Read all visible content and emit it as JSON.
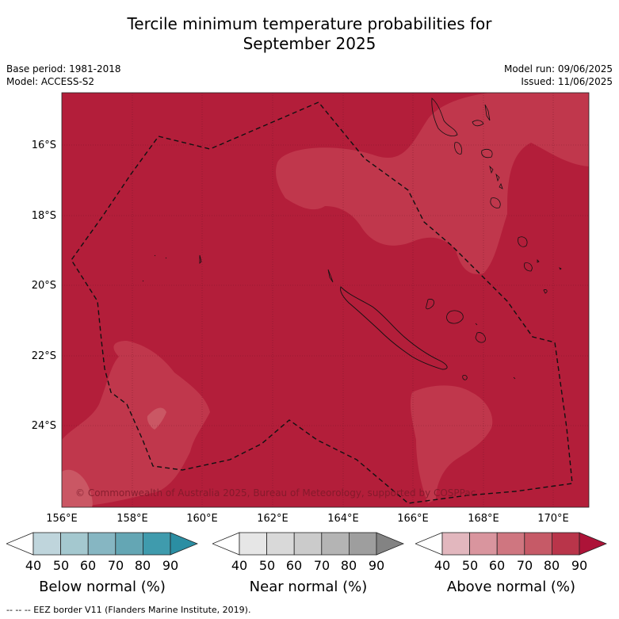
{
  "title_line1": "Tercile minimum temperature probabilities for",
  "title_line2": "September 2025",
  "base_period": "Base period: 1981-2018",
  "model": "Model: ACCESS-S2",
  "model_run": "Model run: 09/06/2025",
  "issued": "Issued: 11/06/2025",
  "copyright": "© Commonwealth of Australia 2025, Bureau of Meteorology, supported by COSPPac",
  "lat_labels": [
    "16°S",
    "18°S",
    "20°S",
    "22°S",
    "24°S"
  ],
  "lon_labels": [
    "156°E",
    "158°E",
    "160°E",
    "162°E",
    "164°E",
    "166°E",
    "168°E",
    "170°E"
  ],
  "colorbars": [
    {
      "label": "Below normal (%)",
      "ticks": [
        "40",
        "50",
        "60",
        "70",
        "80",
        "90"
      ],
      "colors": [
        "#ffffff",
        "#bfd5dc",
        "#a4c8cf",
        "#86b6c2",
        "#64a6b4",
        "#3f9bad",
        "#2b8ea3"
      ]
    },
    {
      "label": "Near normal (%)",
      "ticks": [
        "40",
        "50",
        "60",
        "70",
        "80",
        "90"
      ],
      "colors": [
        "#ffffff",
        "#e6e6e6",
        "#d9d9d9",
        "#cbcbcb",
        "#b4b4b4",
        "#9e9e9e",
        "#838383"
      ]
    },
    {
      "label": "Above normal (%)",
      "ticks": [
        "40",
        "50",
        "60",
        "70",
        "80",
        "90"
      ],
      "colors": [
        "#ffffff",
        "#e2b7be",
        "#d9959e",
        "#cf7680",
        "#c65a67",
        "#b9354a",
        "#ad1338"
      ]
    }
  ],
  "map_colors": {
    "above_80_90": "#b31e3a",
    "above_70_80": "#c0374c",
    "above_60_70": "#ca5764"
  },
  "footer": "--  --  -- EEZ border V11 (Flanders Marine Institute, 2019)."
}
